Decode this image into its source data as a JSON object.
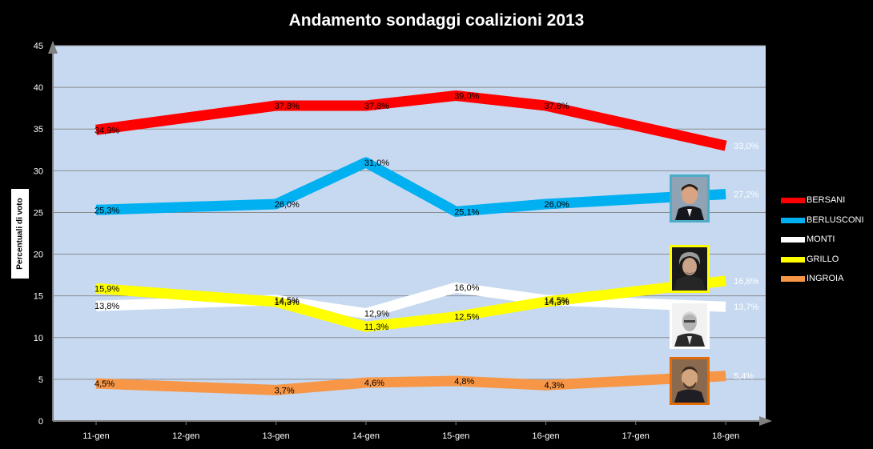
{
  "chart_data": {
    "type": "line",
    "title": "Andamento sondaggi coalizioni 2013",
    "xlabel": "",
    "ylabel": "Percentuali di voto",
    "ylim": [
      0,
      45
    ],
    "yticks": [
      0,
      5,
      10,
      15,
      20,
      25,
      30,
      35,
      40,
      45
    ],
    "grid": true,
    "legend": "right",
    "categories": [
      "11-gen",
      "12-gen",
      "13-gen",
      "14-gen",
      "15-gen",
      "16-gen",
      "17-gen",
      "18-gen"
    ],
    "series": [
      {
        "name": "BERSANI",
        "color": "#ff0000",
        "values": [
          34.9,
          null,
          37.8,
          37.8,
          39.0,
          37.8,
          null,
          33.0
        ],
        "labels": [
          "34,9%",
          null,
          "37,8%",
          "37,8%",
          "39,0%",
          "37,8%",
          null,
          "33,0%"
        ]
      },
      {
        "name": "BERLUSCONI",
        "color": "#00b0f0",
        "values": [
          25.3,
          null,
          26.0,
          31.0,
          25.1,
          26.0,
          null,
          27.2
        ],
        "labels": [
          "25,3%",
          null,
          "26,0%",
          "31,0%",
          "25,1%",
          "26,0%",
          null,
          "27,2%"
        ]
      },
      {
        "name": "MONTI",
        "color": "#ffffff",
        "values": [
          13.8,
          null,
          14.5,
          12.9,
          16.0,
          14.5,
          null,
          13.7
        ],
        "labels": [
          "13,8%",
          null,
          "14,5%",
          "12,9%",
          "16,0%",
          "14,5%",
          null,
          "13,7%"
        ]
      },
      {
        "name": "GRILLO",
        "color": "#ffff00",
        "values": [
          15.9,
          null,
          14.3,
          11.3,
          12.5,
          14.3,
          null,
          16.8
        ],
        "labels": [
          "15,9%",
          null,
          "14,3%",
          "11,3%",
          "12,5%",
          "14,3%",
          null,
          "16,8%"
        ]
      },
      {
        "name": "INGROIA",
        "color": "#f79646",
        "values": [
          4.5,
          null,
          3.7,
          4.6,
          4.8,
          4.3,
          null,
          5.4
        ],
        "labels": [
          "4,5%",
          null,
          "3,7%",
          "4,6%",
          "4,8%",
          "4,3%",
          null,
          "5,4%"
        ]
      }
    ]
  },
  "colors": {
    "plot_background": "#c6d9f1",
    "page_background": "#000000",
    "axis": "#808080"
  },
  "portraits": [
    {
      "name": "berlusconi-portrait-icon",
      "border": "#4bacc6"
    },
    {
      "name": "grillo-portrait-icon",
      "border": "#ffff00"
    },
    {
      "name": "monti-portrait-icon",
      "border": "#ffffff"
    },
    {
      "name": "ingroia-portrait-icon",
      "border": "#e36c09"
    }
  ]
}
